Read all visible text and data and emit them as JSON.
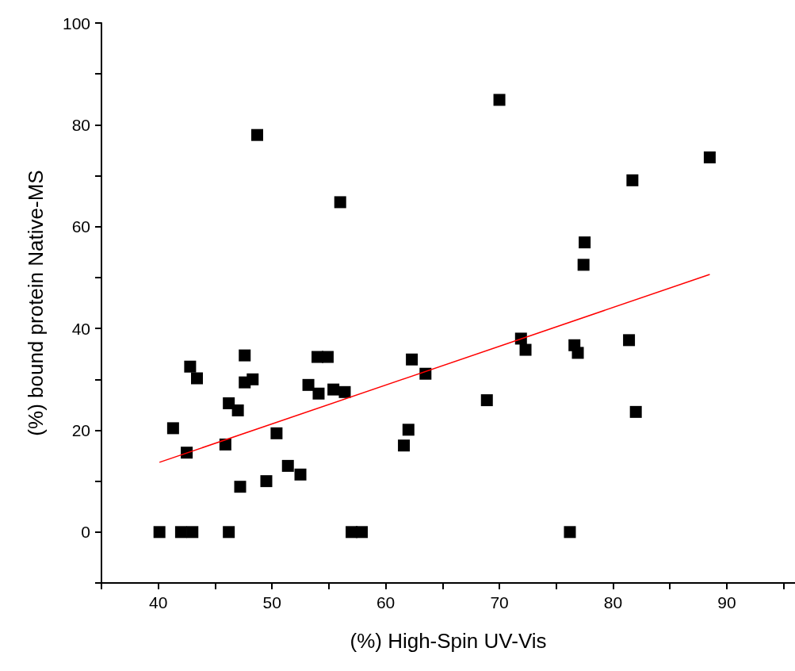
{
  "chart_data": {
    "type": "scatter",
    "xlabel": "(%) High-Spin UV-Vis",
    "ylabel": "(%) bound protein Native-MS",
    "xlim": [
      35,
      96
    ],
    "ylim": [
      -10,
      100
    ],
    "xticks": [
      {
        "value": 35,
        "label": null
      },
      40,
      {
        "value": 45,
        "label": null
      },
      50,
      {
        "value": 55,
        "label": null
      },
      60,
      {
        "value": 65,
        "label": null
      },
      70,
      {
        "value": 75,
        "label": null
      },
      80,
      {
        "value": 85,
        "label": null
      },
      90,
      {
        "value": 95,
        "label": null
      }
    ],
    "yticks": [
      {
        "value": -10,
        "label": null
      },
      0,
      {
        "value": 10,
        "label": null
      },
      20,
      {
        "value": 30,
        "label": null
      },
      40,
      {
        "value": 50,
        "label": null
      },
      60,
      {
        "value": 70,
        "label": null
      },
      80,
      {
        "value": 90,
        "label": null
      },
      100
    ],
    "grid": false,
    "marker": "square",
    "series": [
      {
        "color": "#000000",
        "x": [
          40.1,
          41.3,
          42.5,
          42.0,
          43.0,
          42.8,
          43.4,
          46.2,
          45.9,
          46.2,
          47.0,
          47.2,
          47.6,
          47.6,
          48.3,
          50.4,
          49.5,
          51.4,
          52.5,
          53.2,
          54.1,
          54.0,
          54.9,
          55.4,
          56.4,
          57.0,
          57.9,
          62.3,
          63.5,
          62.0,
          61.6,
          68.9,
          71.9,
          72.3,
          76.6,
          76.9,
          76.2,
          88.5,
          81.7,
          77.5,
          77.4,
          81.4,
          82.0,
          70.0,
          48.7,
          56.0
        ],
        "values": [
          0,
          20.4,
          15.6,
          0,
          0,
          32.5,
          30.2,
          0,
          17.2,
          25.3,
          23.9,
          8.9,
          34.7,
          29.4,
          30.0,
          19.4,
          10.0,
          13.0,
          11.3,
          28.9,
          27.2,
          34.4,
          34.4,
          28.0,
          27.5,
          0,
          0,
          33.9,
          31.1,
          20.1,
          17.0,
          25.9,
          38.0,
          35.8,
          36.7,
          35.2,
          0,
          73.6,
          69.1,
          56.9,
          52.5,
          37.7,
          23.6,
          84.9,
          78.0,
          64.8
        ]
      },
      {
        "type": "line",
        "color": "#ff0000",
        "marker": "none",
        "line_style": "solid",
        "x": [
          40.1,
          88.5
        ],
        "values": [
          13.7,
          50.6
        ]
      }
    ]
  }
}
